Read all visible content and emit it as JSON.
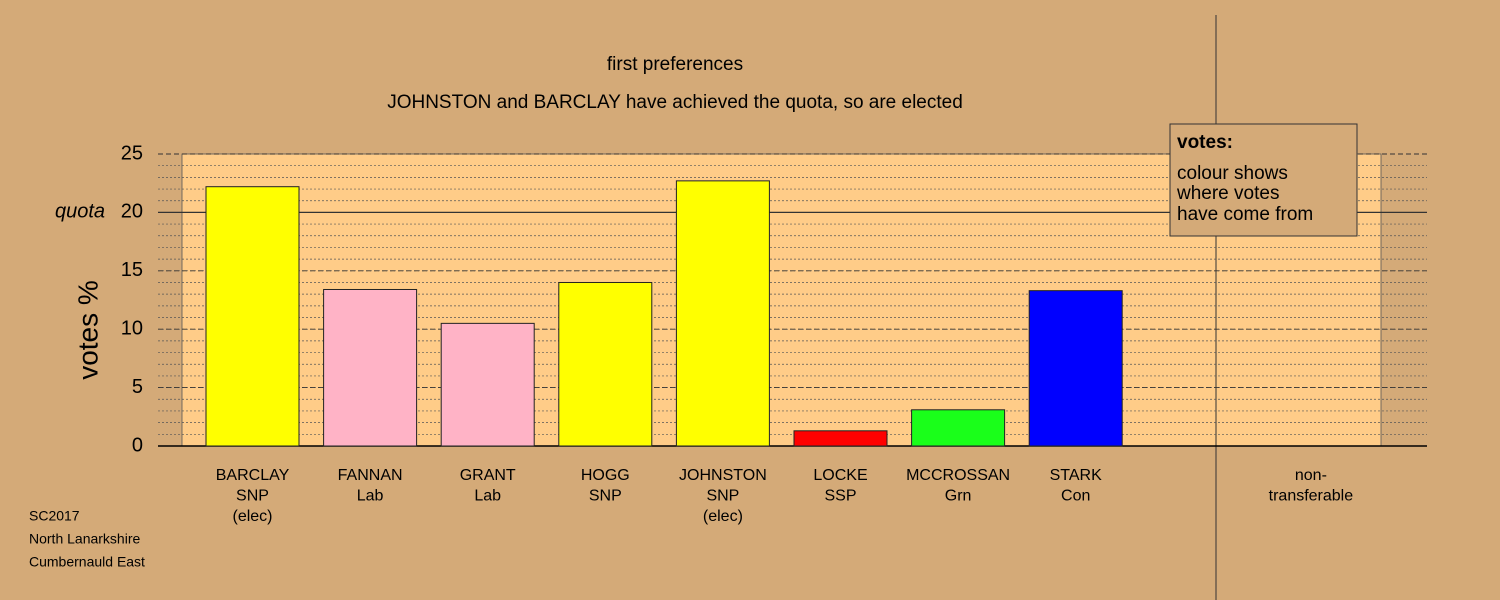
{
  "chart_data": {
    "type": "bar",
    "title": "first preferences",
    "subtitle": "JOHNSTON and BARCLAY have achieved the quota, so are elected",
    "y_label": "votes %",
    "categories": [
      [
        "BARCLAY",
        "SNP",
        "(elec)"
      ],
      [
        "FANNAN",
        "Lab"
      ],
      [
        "GRANT",
        "Lab"
      ],
      [
        "HOGG",
        "SNP"
      ],
      [
        "JOHNSTON",
        "SNP",
        "(elec)"
      ],
      [
        "LOCKE",
        "SSP"
      ],
      [
        "MCCROSSAN",
        "Grn"
      ],
      [
        "STARK",
        "Con"
      ],
      null,
      [
        "non-",
        "transferable"
      ]
    ],
    "values": [
      22.2,
      13.4,
      10.5,
      14.0,
      22.7,
      1.3,
      3.1,
      13.3,
      null,
      null
    ],
    "colors": [
      "#ffff00",
      "#ffb3c6",
      "#ffb3c6",
      "#ffff00",
      "#ffff00",
      "#ff0000",
      "#1aff1a",
      "#0000ff",
      null,
      null
    ],
    "ylim": [
      0,
      25
    ],
    "yticks": [
      0,
      5,
      10,
      15,
      20,
      25
    ],
    "minor_step": 1,
    "quota": 20,
    "quota_label": "quota",
    "legend": {
      "title": "votes:",
      "lines": [
        "colour shows",
        "where votes",
        "have come from"
      ]
    },
    "footer": [
      "SC2017",
      "North Lanarkshire",
      "Cumbernauld East"
    ]
  }
}
